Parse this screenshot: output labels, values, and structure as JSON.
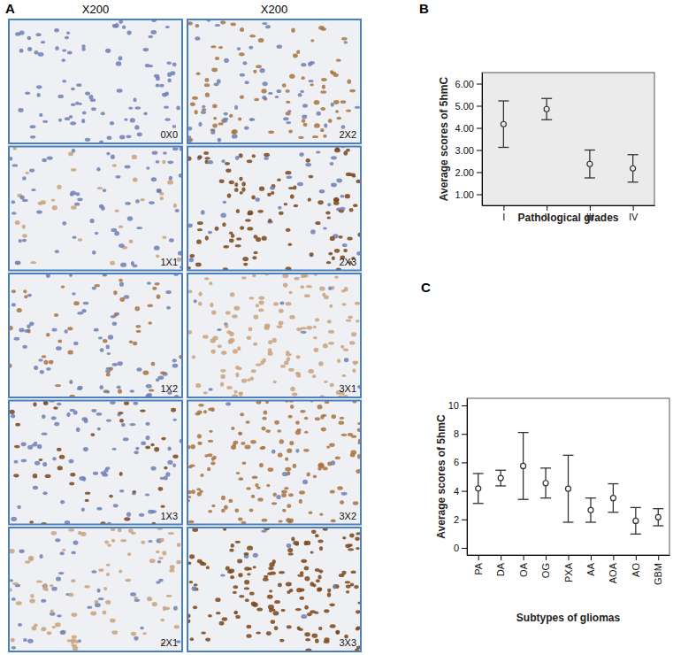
{
  "figure": {
    "panel_labels": [
      "A",
      "B",
      "C"
    ],
    "magnification_headers": [
      "X200",
      "X200"
    ],
    "micrograph_labels": [
      [
        "0X0",
        "1X1",
        "1X2",
        "1X3",
        "2X1"
      ],
      [
        "2X2",
        "2X3",
        "3X1",
        "3X2",
        "3X3"
      ]
    ]
  },
  "chart_data": [
    {
      "type": "errorbar",
      "x_label": "Pathological grades",
      "y_label": "Average scores of 5hmC",
      "categories": [
        "I",
        "II",
        "III",
        "IV"
      ],
      "values": [
        4.17,
        4.85,
        2.37,
        2.17
      ],
      "errors": [
        1.05,
        0.48,
        0.63,
        0.62
      ],
      "ylim": [
        0.5,
        6.5
      ],
      "yticks": [
        {
          "value": 1,
          "label": "1.00"
        },
        {
          "value": 2,
          "label": "2.00"
        },
        {
          "value": 3,
          "label": "3.00"
        },
        {
          "value": 4,
          "label": "4.00"
        },
        {
          "value": 5,
          "label": "5.00"
        },
        {
          "value": 6,
          "label": "6.00"
        }
      ],
      "marker": "circle",
      "color": "#333333"
    },
    {
      "type": "errorbar",
      "x_label": "Subtypes of gliomas",
      "y_label": "Average scores of 5hmC",
      "categories": [
        "PA",
        "DA",
        "OA",
        "OG",
        "PXA",
        "AA",
        "AOA",
        "AO",
        "GBM"
      ],
      "values": [
        4.17,
        4.9,
        5.75,
        4.55,
        4.15,
        2.65,
        3.5,
        1.9,
        2.15
      ],
      "errors": [
        1.05,
        0.55,
        2.35,
        1.05,
        2.35,
        0.85,
        1.0,
        0.93,
        0.6
      ],
      "ylim": [
        -0.5,
        10.5
      ],
      "yticks": [
        0,
        2,
        4,
        6,
        8,
        10
      ],
      "marker": "circle",
      "color": "#333333"
    }
  ]
}
